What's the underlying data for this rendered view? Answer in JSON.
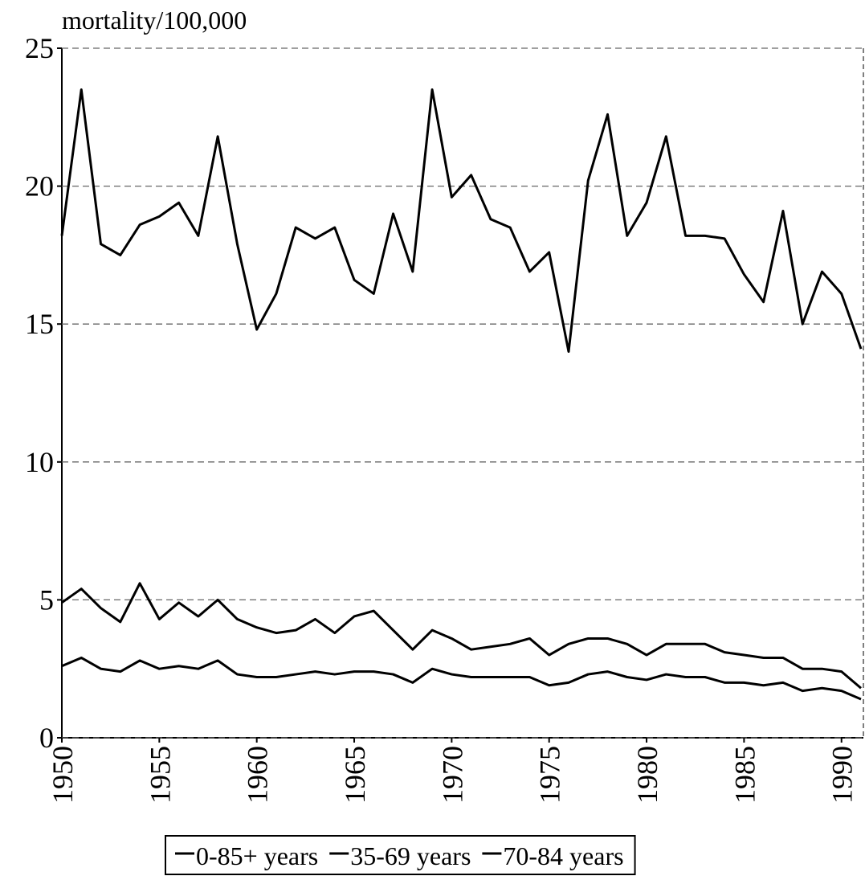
{
  "chart_data": {
    "type": "line",
    "y_label": "mortality/100,000",
    "x": [
      1950,
      1951,
      1952,
      1953,
      1954,
      1955,
      1956,
      1957,
      1958,
      1959,
      1960,
      1961,
      1962,
      1963,
      1964,
      1965,
      1966,
      1967,
      1968,
      1969,
      1970,
      1971,
      1972,
      1973,
      1974,
      1975,
      1976,
      1977,
      1978,
      1979,
      1980,
      1981,
      1982,
      1983,
      1984,
      1985,
      1986,
      1987,
      1988,
      1989,
      1990,
      1991
    ],
    "series": [
      {
        "name": "0-85+ years",
        "color": "#000000",
        "values": [
          2.6,
          2.9,
          2.5,
          2.4,
          2.8,
          2.5,
          2.6,
          2.5,
          2.8,
          2.3,
          2.2,
          2.2,
          2.3,
          2.4,
          2.3,
          2.4,
          2.4,
          2.3,
          2.0,
          2.5,
          2.3,
          2.2,
          2.2,
          2.2,
          2.2,
          1.9,
          2.0,
          2.3,
          2.4,
          2.2,
          2.1,
          2.3,
          2.2,
          2.2,
          2.0,
          2.0,
          1.9,
          2.0,
          1.7,
          1.8,
          1.7,
          1.4
        ]
      },
      {
        "name": "35-69 years",
        "color": "#000000",
        "values": [
          4.9,
          5.4,
          4.7,
          4.2,
          5.6,
          4.3,
          4.9,
          4.4,
          5.0,
          4.3,
          4.0,
          3.8,
          3.9,
          4.3,
          3.8,
          4.4,
          4.6,
          3.9,
          3.2,
          3.9,
          3.6,
          3.2,
          3.3,
          3.4,
          3.6,
          3.0,
          3.4,
          3.6,
          3.6,
          3.4,
          3.0,
          3.4,
          3.4,
          3.4,
          3.1,
          3.0,
          2.9,
          2.9,
          2.5,
          2.5,
          2.4,
          1.8
        ]
      },
      {
        "name": "70-84 years",
        "color": "#000000",
        "values": [
          18.2,
          23.5,
          17.9,
          17.5,
          18.6,
          18.9,
          19.4,
          18.2,
          21.8,
          17.9,
          14.8,
          16.1,
          18.5,
          18.1,
          18.5,
          16.6,
          16.1,
          19.0,
          16.9,
          23.5,
          19.6,
          20.4,
          18.8,
          18.5,
          16.9,
          17.6,
          14.0,
          20.2,
          22.6,
          18.2,
          19.4,
          21.8,
          18.2,
          18.2,
          18.1,
          16.8,
          15.8,
          19.1,
          15.0,
          16.9,
          16.1,
          14.1
        ]
      }
    ],
    "xlim": [
      1950,
      1991
    ],
    "xticks": [
      1950,
      1955,
      1960,
      1965,
      1970,
      1975,
      1980,
      1985,
      1990
    ],
    "ylim": [
      0,
      25
    ],
    "yticks": [
      0,
      5,
      10,
      15,
      20,
      25
    ],
    "grid": true,
    "legend": "bottom"
  }
}
